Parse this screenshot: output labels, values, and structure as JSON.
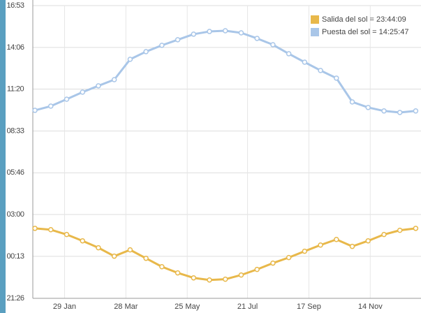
{
  "chart_data": {
    "type": "line",
    "x": [
      1,
      16,
      31,
      46,
      61,
      76,
      91,
      106,
      121,
      136,
      151,
      166,
      181,
      196,
      211,
      226,
      241,
      256,
      271,
      286,
      301,
      316,
      331,
      346,
      361
    ],
    "xlim": [
      -1,
      366
    ],
    "xticks": [
      {
        "value": 29,
        "label": "29 Jan"
      },
      {
        "value": 87,
        "label": "28 Mar"
      },
      {
        "value": 145,
        "label": "25 May"
      },
      {
        "value": 202,
        "label": "21 Jul"
      },
      {
        "value": 260,
        "label": "17 Sep"
      },
      {
        "value": 318,
        "label": "14 Nov"
      }
    ],
    "ylim": [
      21.43,
      40.88
    ],
    "yticks": [
      {
        "value": 21.43,
        "label": "21:26"
      },
      {
        "value": 24.22,
        "label": "00:13"
      },
      {
        "value": 27,
        "label": "03:00"
      },
      {
        "value": 29.77,
        "label": "05:46"
      },
      {
        "value": 32.55,
        "label": "08:33"
      },
      {
        "value": 35.33,
        "label": "11:20"
      },
      {
        "value": 38.1,
        "label": "14:06"
      },
      {
        "value": 40.88,
        "label": "16:53"
      }
    ],
    "grid": true,
    "legend": "top-right",
    "series": [
      {
        "name": "Salida del sol = 23:44:09",
        "color": "#e8b84a",
        "values": [
          26.08,
          25.99,
          25.67,
          25.25,
          24.79,
          24.23,
          24.65,
          24.09,
          23.53,
          23.12,
          22.79,
          22.65,
          22.7,
          22.98,
          23.35,
          23.77,
          24.14,
          24.56,
          24.97,
          25.34,
          24.88,
          25.25,
          25.67,
          25.95,
          26.08
        ]
      },
      {
        "name": "Puesta del sol = 14:25:47",
        "color": "#a9c6e8",
        "values": [
          33.92,
          34.2,
          34.66,
          35.13,
          35.55,
          35.96,
          37.31,
          37.82,
          38.24,
          38.61,
          38.98,
          39.16,
          39.21,
          39.07,
          38.7,
          38.28,
          37.68,
          37.12,
          36.57,
          36.06,
          34.48,
          34.11,
          33.88,
          33.78,
          33.88
        ]
      }
    ]
  }
}
